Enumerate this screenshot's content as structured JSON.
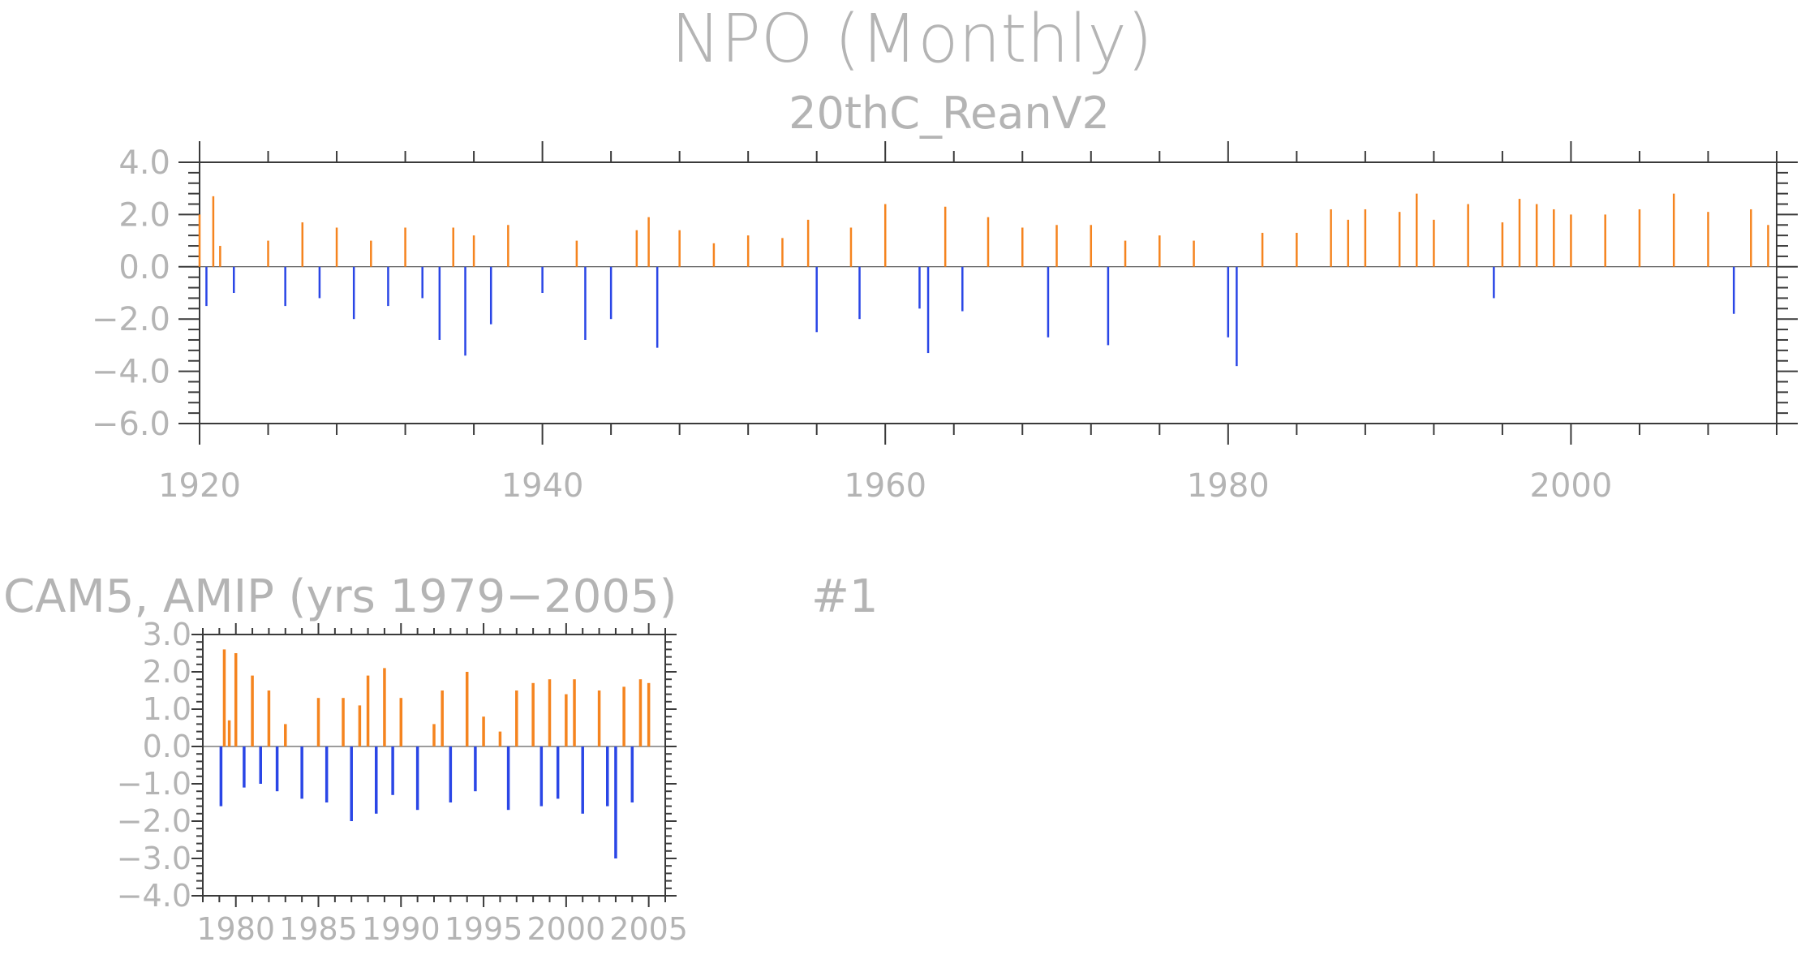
{
  "figure": {
    "title": "NPO (Monthly)",
    "panel2_tag": "#1"
  },
  "colors": {
    "positive": "#f5841f",
    "negative": "#2a46e6",
    "text": "#b4b4b4",
    "axis": "#3a3a3a"
  },
  "chart_data": [
    {
      "type": "bar",
      "title": "20thC_ReanV2",
      "xlabel": "",
      "ylabel": "",
      "xlim": [
        1920,
        2012
      ],
      "ylim": [
        -6.0,
        4.0
      ],
      "yticks": [
        "4.0",
        "2.0",
        "0.0",
        "−2.0",
        "−4.0",
        "−6.0"
      ],
      "ytick_values": [
        4,
        2,
        0,
        -2,
        -4,
        -6
      ],
      "xticks": [
        "1920",
        "1940",
        "1960",
        "1980",
        "2000"
      ],
      "xtick_values": [
        1920,
        1940,
        1960,
        1980,
        2000
      ],
      "grid": false,
      "note_values": "monthly index values, positive bars orange, negative bars blue",
      "x": [
        1920.0,
        1920.4,
        1920.8,
        1921.2,
        1922.0,
        1924.0,
        1925.0,
        1926.0,
        1927.0,
        1928.0,
        1929.0,
        1930.0,
        1931.0,
        1932.0,
        1933.0,
        1934.0,
        1934.8,
        1935.5,
        1936.0,
        1937.0,
        1938.0,
        1940.0,
        1942.0,
        1942.5,
        1944.0,
        1945.5,
        1946.2,
        1946.7,
        1948.0,
        1950.0,
        1952.0,
        1954.0,
        1955.5,
        1956.0,
        1958.0,
        1958.5,
        1960.0,
        1962.0,
        1962.5,
        1963.5,
        1964.5,
        1966.0,
        1968.0,
        1969.5,
        1970.0,
        1972.0,
        1973.0,
        1974.0,
        1976.0,
        1978.0,
        1980.0,
        1980.5,
        1982.0,
        1984.0,
        1986.0,
        1987.0,
        1988.0,
        1990.0,
        1991.0,
        1992.0,
        1994.0,
        1995.5,
        1996.0,
        1997.0,
        1998.0,
        1999.0,
        2000.0,
        2002.0,
        2004.0,
        2006.0,
        2008.0,
        2009.5,
        2010.5,
        2011.5
      ],
      "values": [
        2.0,
        -1.5,
        2.7,
        0.8,
        -1.0,
        1.0,
        -1.5,
        1.7,
        -1.2,
        1.5,
        -2.0,
        1.0,
        -1.5,
        1.5,
        -1.2,
        -2.8,
        1.5,
        -3.4,
        1.2,
        -2.2,
        1.6,
        -1.0,
        1.0,
        -2.8,
        -2.0,
        1.4,
        1.9,
        -3.1,
        1.4,
        0.9,
        1.2,
        1.1,
        1.8,
        -2.5,
        1.5,
        -2.0,
        2.4,
        -1.6,
        -3.3,
        2.3,
        -1.7,
        1.9,
        1.5,
        -2.7,
        1.6,
        1.6,
        -3.0,
        1.0,
        1.2,
        1.0,
        -2.7,
        -3.8,
        1.3,
        1.3,
        2.2,
        1.8,
        2.2,
        2.1,
        2.8,
        1.8,
        2.4,
        -1.2,
        1.7,
        2.6,
        2.4,
        2.2,
        2.0,
        2.0,
        2.2,
        2.8,
        2.1,
        -1.8,
        2.2,
        1.6
      ]
    },
    {
      "type": "bar",
      "title": "CAM5, AMIP (yrs 1979−2005)",
      "xlabel": "",
      "ylabel": "",
      "xlim": [
        1978,
        2006
      ],
      "ylim": [
        -4.0,
        3.0
      ],
      "yticks": [
        "3.0",
        "2.0",
        "1.0",
        "0.0",
        "−1.0",
        "−2.0",
        "−3.0",
        "−4.0"
      ],
      "ytick_values": [
        3,
        2,
        1,
        0,
        -1,
        -2,
        -3,
        -4
      ],
      "xticks": [
        "1980",
        "1985",
        "1990",
        "1995",
        "2000",
        "2005"
      ],
      "xtick_values": [
        1980,
        1985,
        1990,
        1995,
        2000,
        2005
      ],
      "grid": false,
      "x": [
        1979.1,
        1979.3,
        1979.6,
        1980.0,
        1980.5,
        1981.0,
        1981.5,
        1982.0,
        1982.5,
        1983.0,
        1984.0,
        1985.0,
        1985.5,
        1986.5,
        1987.0,
        1987.5,
        1988.0,
        1988.5,
        1989.0,
        1989.5,
        1990.0,
        1991.0,
        1992.0,
        1992.5,
        1993.0,
        1994.0,
        1994.5,
        1995.0,
        1996.0,
        1996.5,
        1997.0,
        1998.0,
        1998.5,
        1999.0,
        1999.5,
        2000.0,
        2000.5,
        2001.0,
        2002.0,
        2002.5,
        2003.0,
        2003.5,
        2004.0,
        2004.5,
        2005.0
      ],
      "values": [
        -1.6,
        2.6,
        0.7,
        2.5,
        -1.1,
        1.9,
        -1.0,
        1.5,
        -1.2,
        0.6,
        -1.4,
        1.3,
        -1.5,
        1.3,
        -2.0,
        1.1,
        1.9,
        -1.8,
        2.1,
        -1.3,
        1.3,
        -1.7,
        0.6,
        1.5,
        -1.5,
        2.0,
        -1.2,
        0.8,
        0.4,
        -1.7,
        1.5,
        1.7,
        -1.6,
        1.8,
        -1.4,
        1.4,
        1.8,
        -1.8,
        1.5,
        -1.6,
        -3.0,
        1.6,
        -1.5,
        1.8,
        1.7
      ]
    }
  ]
}
